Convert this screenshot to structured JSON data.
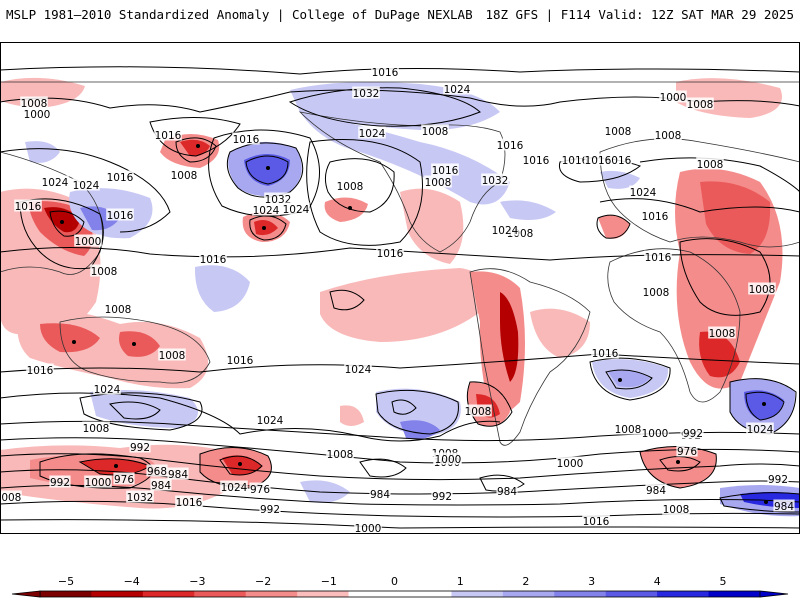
{
  "header": {
    "left": "MSLP 1981–2010 Standardized Anomaly | College of DuPage NEXLAB",
    "right": "18Z GFS | F114 Valid: 12Z SAT MAR 29 2025"
  },
  "colorbar": {
    "ticks": [
      "−5",
      "−4",
      "−3",
      "−2",
      "−1",
      "0",
      "1",
      "2",
      "3",
      "4",
      "5"
    ],
    "colors": [
      "#7d0000",
      "#b40000",
      "#dc2828",
      "#eb5a5a",
      "#f58c8c",
      "#fbbcbc",
      "#ffffff",
      "#ffffff",
      "#c8c8f5",
      "#a8a8f0",
      "#8282ea",
      "#5a5ae6",
      "#2828e0",
      "#0000c8"
    ]
  },
  "isobar_labels": [
    {
      "text": "1016"
    },
    {
      "text": "1032"
    },
    {
      "text": "1024"
    },
    {
      "text": "1000"
    },
    {
      "text": "1008"
    },
    {
      "text": "1016"
    },
    {
      "text": "1016"
    },
    {
      "text": "1008"
    },
    {
      "text": "1024"
    },
    {
      "text": "1016"
    },
    {
      "text": "1024"
    },
    {
      "text": "1016"
    },
    {
      "text": "1032"
    },
    {
      "text": "1024"
    },
    {
      "text": "1008"
    },
    {
      "text": "1016"
    },
    {
      "text": "1016"
    },
    {
      "text": "1024"
    },
    {
      "text": "1000"
    },
    {
      "text": "1008"
    },
    {
      "text": "1016"
    },
    {
      "text": "1008"
    },
    {
      "text": "1016"
    },
    {
      "text": "1032"
    },
    {
      "text": "1008"
    },
    {
      "text": "1016"
    },
    {
      "text": "1024"
    },
    {
      "text": "1008"
    },
    {
      "text": "1024"
    },
    {
      "text": "1016"
    },
    {
      "text": "1008"
    },
    {
      "text": "1016"
    },
    {
      "text": "1008"
    },
    {
      "text": "1008"
    },
    {
      "text": "1000"
    },
    {
      "text": "1008"
    },
    {
      "text": "1008"
    },
    {
      "text": "1008"
    },
    {
      "text": "1008"
    },
    {
      "text": "1016"
    },
    {
      "text": "1016"
    },
    {
      "text": "1016"
    },
    {
      "text": "1016"
    },
    {
      "text": "1016"
    },
    {
      "text": "1024"
    },
    {
      "text": "1008"
    },
    {
      "text": "1008"
    },
    {
      "text": "1016"
    },
    {
      "text": "1024"
    },
    {
      "text": "1024"
    },
    {
      "text": "1016"
    },
    {
      "text": "1024"
    },
    {
      "text": "1008"
    },
    {
      "text": "1008"
    },
    {
      "text": "1000"
    },
    {
      "text": "992"
    },
    {
      "text": "1008"
    },
    {
      "text": "992"
    },
    {
      "text": "976"
    },
    {
      "text": "968"
    },
    {
      "text": "984"
    },
    {
      "text": "1000"
    },
    {
      "text": "984"
    },
    {
      "text": "1024"
    },
    {
      "text": "1032"
    },
    {
      "text": "1016"
    },
    {
      "text": "992"
    },
    {
      "text": "1008"
    },
    {
      "text": "976"
    },
    {
      "text": "1008"
    },
    {
      "text": "1000"
    },
    {
      "text": "992"
    },
    {
      "text": "984"
    },
    {
      "text": "984"
    },
    {
      "text": "992"
    },
    {
      "text": "1000"
    },
    {
      "text": "1008"
    },
    {
      "text": "1000"
    },
    {
      "text": "984"
    },
    {
      "text": "992"
    },
    {
      "text": "976"
    },
    {
      "text": "992"
    },
    {
      "text": "1000"
    },
    {
      "text": "1016"
    },
    {
      "text": "1008"
    },
    {
      "text": "984"
    },
    {
      "text": "1024"
    }
  ]
}
